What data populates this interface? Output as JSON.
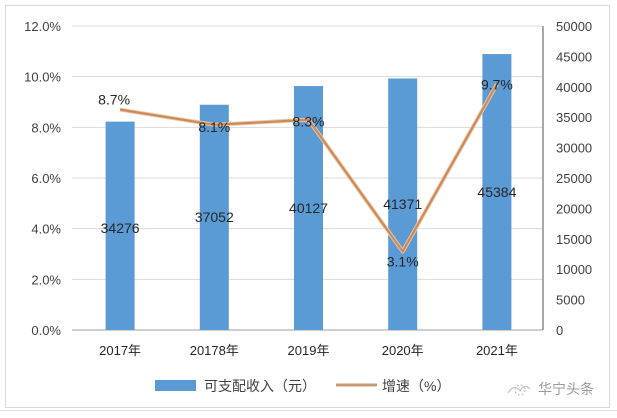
{
  "chart_data": {
    "type": "bar+line",
    "title": "",
    "categories": [
      "2017年",
      "20178年",
      "2019年",
      "2020年",
      "2021年"
    ],
    "series": [
      {
        "name": "可支配收入（元）",
        "type": "bar",
        "axis": "right",
        "color": "#5b9bd5",
        "values": [
          34276,
          37052,
          40127,
          41371,
          45384
        ],
        "labels": [
          "34276",
          "37052",
          "40127",
          "41371",
          "45384"
        ]
      },
      {
        "name": "增速（%）",
        "type": "line",
        "axis": "left",
        "color": "#ed7d31",
        "values": [
          8.7,
          8.1,
          8.3,
          3.1,
          9.7
        ],
        "labels": [
          "8.7%",
          "8.1%",
          "8.3%",
          "3.1%",
          "9.7%"
        ]
      }
    ],
    "left_axis": {
      "ticks": [
        "0.0%",
        "2.0%",
        "4.0%",
        "6.0%",
        "8.0%",
        "10.0%",
        "12.0%"
      ],
      "range": [
        0,
        12
      ]
    },
    "right_axis": {
      "ticks": [
        "0",
        "5000",
        "10000",
        "15000",
        "20000",
        "25000",
        "30000",
        "35000",
        "40000",
        "45000",
        "50000"
      ],
      "range": [
        0,
        50000
      ]
    },
    "grid": true,
    "legend_position": "bottom"
  },
  "legend": {
    "bar_label": "可支配收入（元）",
    "line_label": "增速（%）"
  },
  "watermark": {
    "text": "华宁头条"
  }
}
